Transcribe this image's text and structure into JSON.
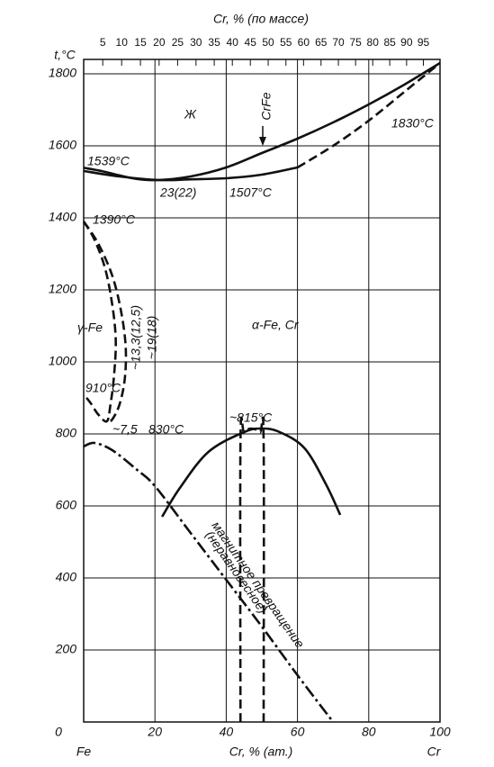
{
  "chart_data": {
    "type": "line",
    "y_label": "t,°C",
    "x_label": "Cr, % (ат.)",
    "x2_label": "Cr, % (по массе)",
    "x_left_label": "Fe",
    "x_right_label": "Cr",
    "xlim": [
      0,
      100
    ],
    "xticks": [
      0,
      20,
      40,
      60,
      80,
      100
    ],
    "ylim": [
      0,
      1840
    ],
    "yticks": [
      200,
      400,
      600,
      800,
      1000,
      1200,
      1400,
      1600,
      1800
    ],
    "x2ticks": [
      {
        "value": 5.35,
        "label": "5"
      },
      {
        "value": 10.66,
        "label": "10"
      },
      {
        "value": 15.93,
        "label": "15"
      },
      {
        "value": 21.17,
        "label": "20"
      },
      {
        "value": 26.36,
        "label": "25"
      },
      {
        "value": 31.52,
        "label": "30"
      },
      {
        "value": 36.64,
        "label": "35"
      },
      {
        "value": 41.72,
        "label": "40"
      },
      {
        "value": 46.77,
        "label": "45"
      },
      {
        "value": 51.78,
        "label": "50"
      },
      {
        "value": 56.76,
        "label": "55"
      },
      {
        "value": 61.7,
        "label": "60"
      },
      {
        "value": 66.61,
        "label": "65"
      },
      {
        "value": 71.48,
        "label": "70"
      },
      {
        "value": 76.31,
        "label": "75"
      },
      {
        "value": 81.12,
        "label": "80"
      },
      {
        "value": 85.89,
        "label": "85"
      },
      {
        "value": 90.62,
        "label": "90"
      },
      {
        "value": 95.33,
        "label": "95"
      }
    ],
    "grid": true,
    "series": [
      {
        "color": "#111111",
        "style": "solid",
        "x": [
          0,
          5,
          10,
          15,
          21,
          30,
          40,
          50,
          60,
          70,
          80,
          90,
          100
        ],
        "values": [
          1539,
          1530,
          1518,
          1508,
          1505,
          1515,
          1540,
          1580,
          1620,
          1665,
          1715,
          1770,
          1830
        ]
      },
      {
        "color": "#111111",
        "style": "solid",
        "x": [
          0,
          10,
          21,
          30,
          40,
          50,
          60
        ],
        "values": [
          1530,
          1515,
          1505,
          1507,
          1510,
          1520,
          1540
        ]
      },
      {
        "color": "#111111",
        "style": "dashed",
        "x": [
          60,
          70,
          80,
          90,
          100
        ],
        "values": [
          1540,
          1600,
          1670,
          1750,
          1830
        ]
      },
      {
        "color": "#111111",
        "style": "dashed",
        "x": [
          0,
          3,
          6,
          8,
          9,
          8.5,
          7.5,
          6.5,
          4,
          2,
          0
        ],
        "values": [
          1390,
          1340,
          1260,
          1160,
          1060,
          960,
          880,
          835,
          855,
          885,
          910
        ]
      },
      {
        "color": "#111111",
        "style": "dashed",
        "x": [
          0,
          4,
          8,
          10.5,
          11.8,
          11.5,
          10,
          8,
          6.5
        ],
        "values": [
          1390,
          1330,
          1240,
          1140,
          1040,
          950,
          880,
          840,
          830
        ]
      },
      {
        "color": "#111111",
        "style": "solid",
        "x": [
          22,
          27,
          35,
          45,
          50,
          55,
          62,
          68,
          72
        ],
        "values": [
          570,
          650,
          750,
          805,
          815,
          805,
          760,
          660,
          575
        ]
      },
      {
        "color": "#111111",
        "style": "dashed",
        "x": [
          44,
          44,
          45,
          47,
          49.5,
          50.5,
          50.5
        ],
        "values": [
          0,
          780,
          805,
          815,
          805,
          780,
          0
        ]
      },
      {
        "color": "#111111",
        "style": "dashdot",
        "x": [
          0,
          3,
          8,
          15,
          20,
          30,
          40,
          50,
          60,
          70
        ],
        "values": [
          765,
          775,
          755,
          700,
          655,
          525,
          395,
          265,
          130,
          0
        ]
      }
    ],
    "annotations": [
      "1539°C",
      "23(22)",
      "1507°C",
      "1830°C",
      "Ж",
      "CrFe",
      "1390°C",
      "γ-Fe",
      "~13,3(12,5)",
      "~19(18)",
      "910°C",
      "~7,5",
      "830°C",
      "α-Fe, Cr",
      "~815°C",
      "магнитное превращение",
      "(неравновесное)"
    ]
  }
}
